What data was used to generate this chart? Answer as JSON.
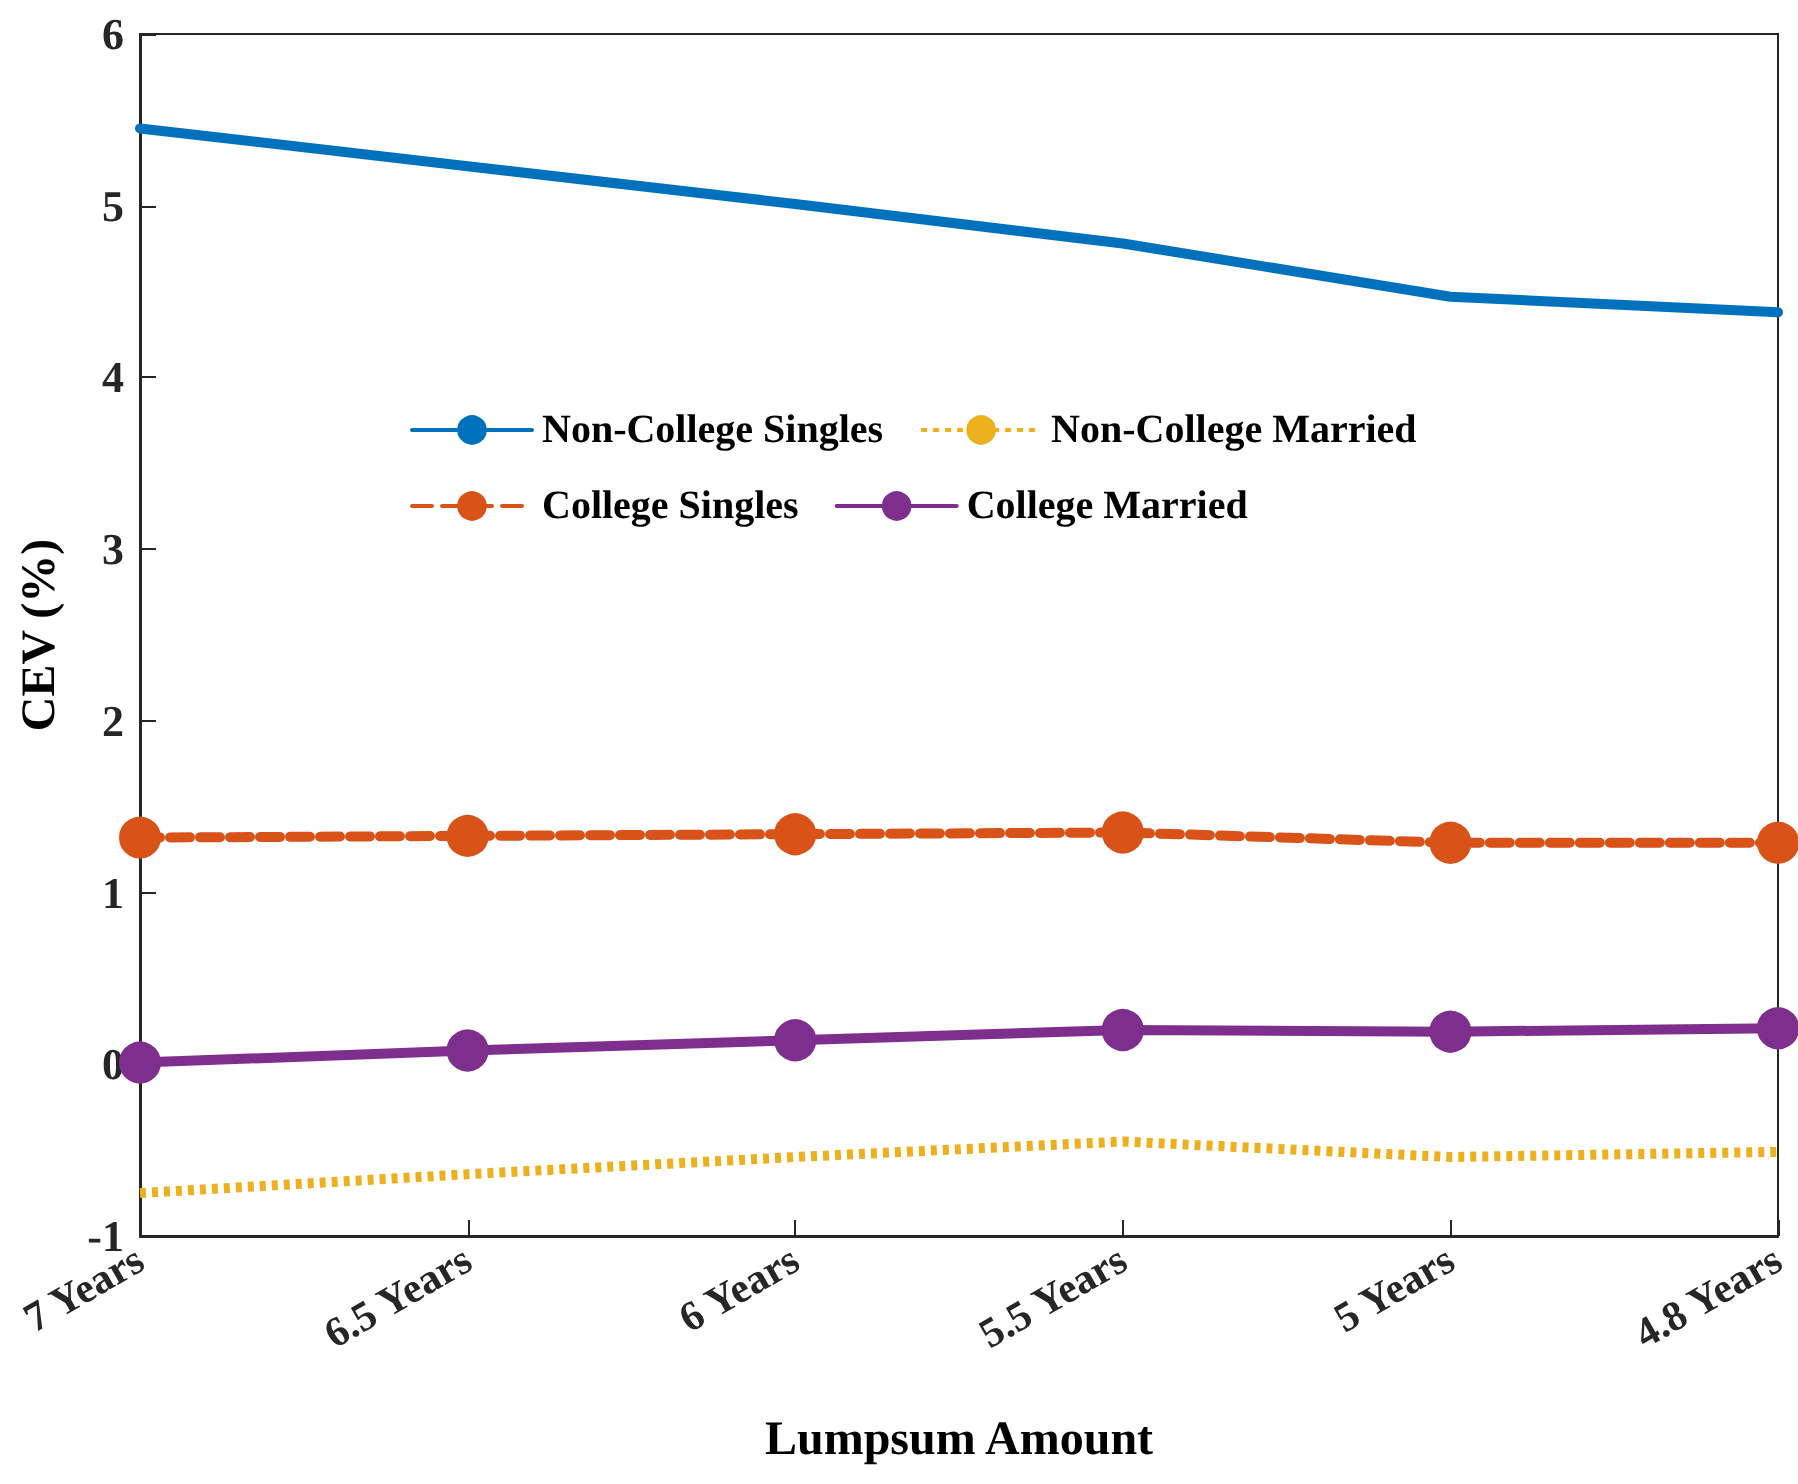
{
  "chart_data": {
    "type": "line",
    "xlabel": "Lumpsum Amount",
    "ylabel": "CEV (%)",
    "categories": [
      "7 Years",
      "6.5 Years",
      "6 Years",
      "5.5 Years",
      "5 Years",
      "4.8 Years"
    ],
    "series": [
      {
        "name": "Non-College Singles",
        "color": "#0072bd",
        "values": [
          5.45,
          5.23,
          5.01,
          4.78,
          4.47,
          4.38
        ],
        "marker": "none",
        "line_style": "solid"
      },
      {
        "name": "Non-College Married",
        "color": "#edb120",
        "values": [
          -0.75,
          -0.64,
          -0.54,
          -0.45,
          -0.54,
          -0.51
        ],
        "marker": "none",
        "line_style": "dotted"
      },
      {
        "name": "College Singles",
        "color": "#d95319",
        "values": [
          1.32,
          1.33,
          1.34,
          1.35,
          1.29,
          1.29
        ],
        "marker": "circle",
        "line_style": "dashed"
      },
      {
        "name": "College Married",
        "color": "#7e2f8e",
        "values": [
          0.01,
          0.08,
          0.14,
          0.2,
          0.19,
          0.21
        ],
        "marker": "circle",
        "line_style": "solid"
      }
    ],
    "ylim": [
      -1,
      6
    ],
    "yticks": [
      -1,
      0,
      1,
      2,
      3,
      4,
      5,
      6
    ],
    "grid": false,
    "legend": "top"
  }
}
